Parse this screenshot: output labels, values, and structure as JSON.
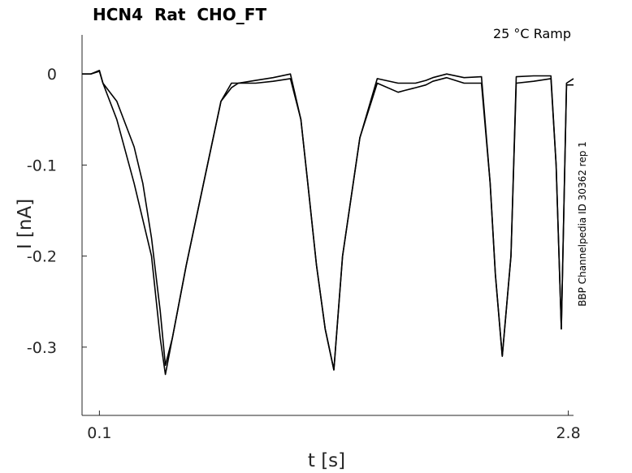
{
  "chart_data": {
    "type": "line",
    "title": "HCN4  Rat  CHO_FT",
    "annotation": "25 °C  Ramp",
    "side_label": "BBP Channelpedia ID 30362 rep 1",
    "xlabel": "t [s]",
    "ylabel": "I [nA]",
    "xlim": [
      0.0,
      2.83
    ],
    "ylim": [
      -0.375,
      0.043
    ],
    "x_ticks": [
      0.1,
      2.8
    ],
    "x_tick_labels": [
      "0.1",
      "2.8"
    ],
    "y_ticks": [
      0,
      -0.1,
      -0.2,
      -0.3
    ],
    "y_tick_labels": [
      "0",
      "-0.1",
      "-0.2",
      "-0.3"
    ],
    "grid": false,
    "line_color": "#000000",
    "series": [
      {
        "x": [
          0.0,
          0.05,
          0.1,
          0.12,
          0.2,
          0.3,
          0.4,
          0.45,
          0.48,
          0.52,
          0.6,
          0.7,
          0.8,
          0.86,
          0.9,
          1.0,
          1.1,
          1.2,
          1.26,
          1.3,
          1.35,
          1.4,
          1.45,
          1.5,
          1.6,
          1.7,
          1.82,
          1.86,
          1.92,
          1.98,
          2.02,
          2.1,
          2.2,
          2.3,
          2.35,
          2.38,
          2.42,
          2.47,
          2.5,
          2.6,
          2.7,
          2.73,
          2.76,
          2.79,
          2.83
        ],
        "y": [
          0.0,
          0.0,
          0.004,
          -0.01,
          -0.05,
          -0.12,
          -0.2,
          -0.29,
          -0.33,
          -0.29,
          -0.21,
          -0.12,
          -0.03,
          -0.01,
          -0.01,
          -0.007,
          -0.004,
          0.0,
          -0.05,
          -0.12,
          -0.21,
          -0.28,
          -0.325,
          -0.2,
          -0.07,
          -0.005,
          -0.01,
          -0.01,
          -0.01,
          -0.007,
          -0.004,
          0.0,
          -0.004,
          -0.003,
          -0.12,
          -0.22,
          -0.31,
          -0.2,
          -0.003,
          -0.002,
          -0.002,
          -0.1,
          -0.28,
          -0.01,
          -0.005
        ]
      },
      {
        "x": [
          0.0,
          0.05,
          0.1,
          0.12,
          0.2,
          0.3,
          0.35,
          0.4,
          0.45,
          0.48,
          0.52,
          0.6,
          0.7,
          0.8,
          0.86,
          0.9,
          1.0,
          1.1,
          1.2,
          1.26,
          1.3,
          1.35,
          1.4,
          1.45,
          1.5,
          1.6,
          1.7,
          1.82,
          1.86,
          1.92,
          1.98,
          2.02,
          2.1,
          2.2,
          2.3,
          2.35,
          2.38,
          2.42,
          2.47,
          2.5,
          2.6,
          2.7,
          2.73,
          2.76,
          2.79,
          2.83
        ],
        "y": [
          0.0,
          0.0,
          0.003,
          -0.01,
          -0.03,
          -0.08,
          -0.12,
          -0.18,
          -0.26,
          -0.32,
          -0.29,
          -0.21,
          -0.12,
          -0.03,
          -0.015,
          -0.01,
          -0.01,
          -0.008,
          -0.005,
          -0.05,
          -0.12,
          -0.21,
          -0.28,
          -0.325,
          -0.2,
          -0.07,
          -0.01,
          -0.02,
          -0.018,
          -0.015,
          -0.012,
          -0.008,
          -0.004,
          -0.01,
          -0.01,
          -0.12,
          -0.22,
          -0.31,
          -0.2,
          -0.01,
          -0.008,
          -0.005,
          -0.1,
          -0.28,
          -0.012,
          -0.012
        ]
      }
    ]
  }
}
